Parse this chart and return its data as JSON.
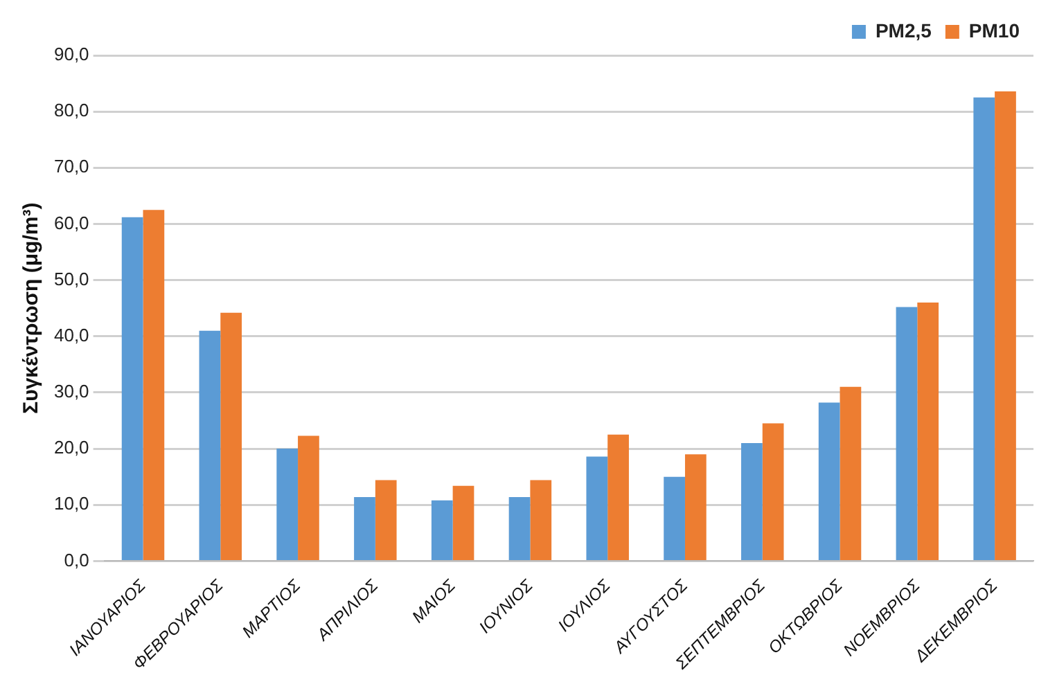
{
  "chart_data": {
    "type": "bar",
    "ylabel": "Συγκέντρωση (μg/m³)",
    "categories": [
      "ΙΑΝΟΥΑΡΙΟΣ",
      "ΦΕΒΡΟΥΑΡΙΟΣ",
      "ΜΑΡΤΙΟΣ",
      "ΑΠΡΙΛΙΟΣ",
      "ΜΑΙΟΣ",
      "ΙΟΥΝΙΟΣ",
      "ΙΟΥΛΙΟΣ",
      "ΑΥΓΟΥΣΤΟΣ",
      "ΣΕΠΤΕΜΒΡΙΟΣ",
      "ΟΚΤΩΒΡΙΟΣ",
      "ΝΟΕΜΒΡΙΟΣ",
      "ΔΕΚΕΜΒΡΙΟΣ"
    ],
    "series": [
      {
        "name": "PM2,5",
        "color": "#5b9bd5",
        "values": [
          61.2,
          41,
          20,
          11.4,
          10.8,
          11.4,
          18.6,
          15,
          21,
          28.2,
          45.2,
          82.5
        ]
      },
      {
        "name": "PM10",
        "color": "#ed7d31",
        "values": [
          62.5,
          44.2,
          22.3,
          14.4,
          13.4,
          14.4,
          22.5,
          19,
          24.5,
          31,
          46,
          83.6
        ]
      }
    ],
    "ylim": [
      0,
      90
    ],
    "yticks": [
      {
        "value": 0,
        "label": "0,0"
      },
      {
        "value": 10,
        "label": "10,0"
      },
      {
        "value": 20,
        "label": "20,0"
      },
      {
        "value": 30,
        "label": "30,0"
      },
      {
        "value": 40,
        "label": "40,0"
      },
      {
        "value": 50,
        "label": "50,0"
      },
      {
        "value": 60,
        "label": "60,0"
      },
      {
        "value": 70,
        "label": "70,0"
      },
      {
        "value": 80,
        "label": "80,0"
      },
      {
        "value": 90,
        "label": "90,0"
      }
    ],
    "grid": "y",
    "legend": "top right"
  }
}
